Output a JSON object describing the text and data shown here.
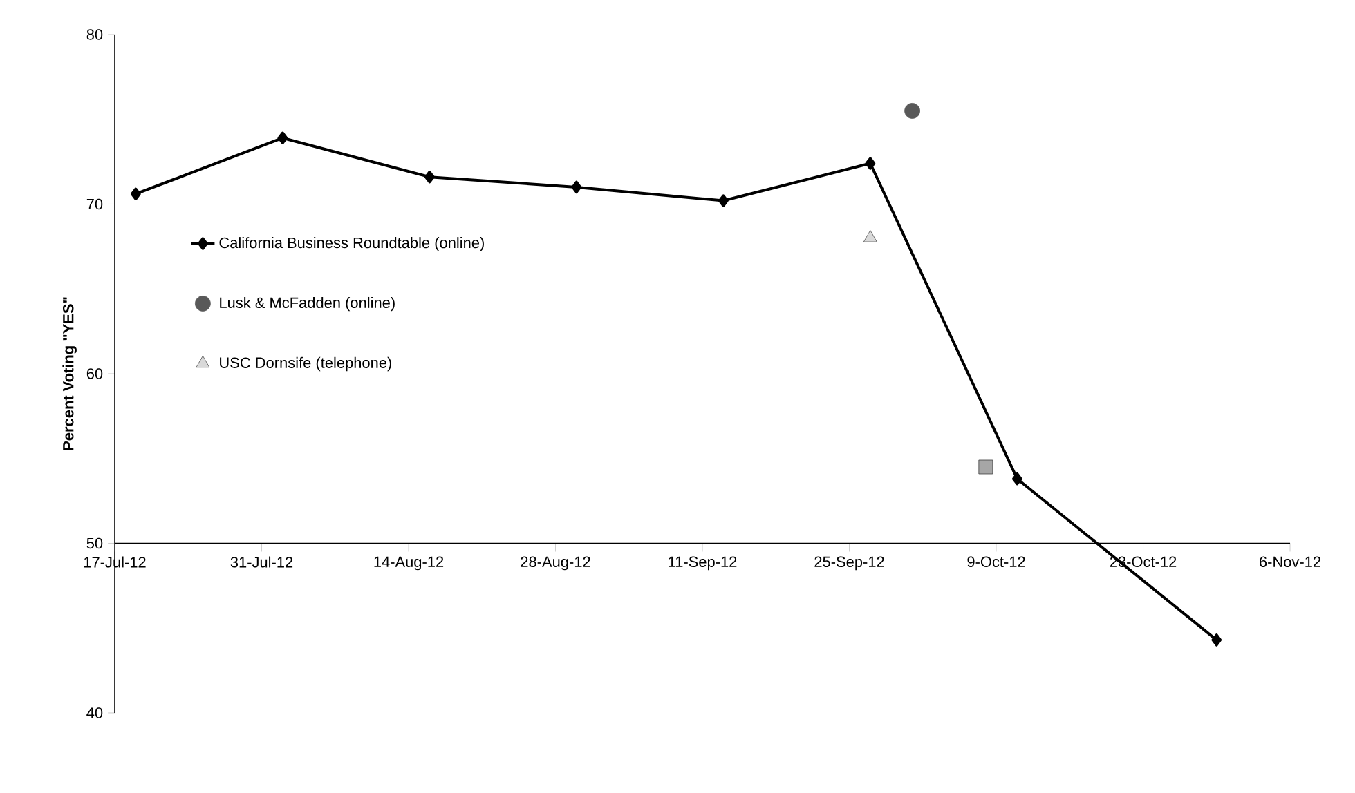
{
  "chart_data": {
    "type": "line",
    "ylabel": "Percent Voting \"YES\"",
    "xlim": [
      "2012-07-17",
      "2012-11-06"
    ],
    "xticks": [
      {
        "value": "2012-07-17",
        "label": "17-Jul-12"
      },
      {
        "value": "2012-07-31",
        "label": "31-Jul-12"
      },
      {
        "value": "2012-08-14",
        "label": "14-Aug-12"
      },
      {
        "value": "2012-08-28",
        "label": "28-Aug-12"
      },
      {
        "value": "2012-09-11",
        "label": "11-Sep-12"
      },
      {
        "value": "2012-09-25",
        "label": "25-Sep-12"
      },
      {
        "value": "2012-10-09",
        "label": "9-Oct-12"
      },
      {
        "value": "2012-10-23",
        "label": "23-Oct-12"
      },
      {
        "value": "2012-11-06",
        "label": "6-Nov-12"
      }
    ],
    "ylim": [
      40,
      80
    ],
    "yticks": [
      40,
      50,
      60,
      70,
      80
    ],
    "grid": false,
    "legend": "left",
    "series": [
      {
        "name": "California Business Roundtable (online)",
        "marker": "diamond",
        "line_style": "solid",
        "color": "#000000",
        "x": [
          "2012-07-19",
          "2012-08-02",
          "2012-08-16",
          "2012-08-30",
          "2012-09-13",
          "2012-09-27",
          "2012-10-11",
          "2012-10-30"
        ],
        "values": [
          70.6,
          73.9,
          71.6,
          71.0,
          70.2,
          72.4,
          53.8,
          44.3
        ]
      },
      {
        "name": "Lusk & McFadden (online)",
        "type": "scatter",
        "marker": "circle",
        "color": "#595959",
        "x": [
          "2012-10-01"
        ],
        "values": [
          75.5
        ]
      },
      {
        "type": "scatter",
        "marker": "square",
        "color": "#a6a6a6",
        "x": [
          "2012-10-08"
        ],
        "values": [
          54.5
        ]
      },
      {
        "name": "USC Dornsife (telephone)",
        "type": "scatter",
        "marker": "triangle",
        "color": "#d9d9d9",
        "x": [
          "2012-09-27"
        ],
        "values": [
          68.0
        ]
      }
    ]
  }
}
